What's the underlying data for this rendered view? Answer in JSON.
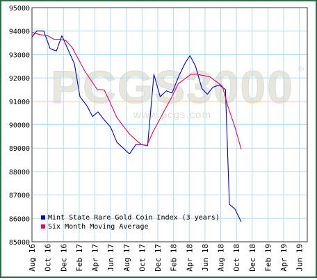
{
  "chart_data": {
    "type": "line",
    "title": "",
    "xlabel": "",
    "ylabel": "",
    "ylim": [
      85000,
      95000
    ],
    "grid": true,
    "legend_position": "bottom-left",
    "y_ticks": [
      85000,
      86000,
      87000,
      88000,
      89000,
      90000,
      91000,
      92000,
      93000,
      94000,
      95000
    ],
    "y_tick_labels": [
      "85000",
      "86000",
      "87000",
      "88000",
      "89000",
      "90000",
      "91000",
      "92000",
      "93000",
      "94000",
      "95000"
    ],
    "x_tick_labels": [
      "Aug 16",
      "Oct 16",
      "Dec 16",
      "Feb 17",
      "Apr 17",
      "Jun 17",
      "Aug 17",
      "Oct 17",
      "Dec 17",
      "Feb 18",
      "Apr 18",
      "Jun 18",
      "Aug 18",
      "Oct 18",
      "Dec 18",
      "Feb 19",
      "Apr 19",
      "Jun 19"
    ],
    "x_tick_month_index": [
      0,
      2,
      4,
      6,
      8,
      10,
      12,
      14,
      16,
      18,
      20,
      22,
      24,
      26,
      28,
      30,
      32,
      34
    ],
    "x_month_range": [
      0,
      35
    ],
    "series": [
      {
        "name": "Mint State Rare Gold Coin Index (3 years)",
        "color": "#0000cc",
        "points": [
          [
            0,
            93750
          ],
          [
            0.6,
            94000
          ],
          [
            1.5,
            94000
          ],
          [
            2.3,
            93250
          ],
          [
            3.1,
            93150
          ],
          [
            3.8,
            93800
          ],
          [
            4.6,
            93200
          ],
          [
            5.4,
            92600
          ],
          [
            6.1,
            91200
          ],
          [
            7.0,
            90800
          ],
          [
            7.7,
            90350
          ],
          [
            8.4,
            90550
          ],
          [
            9.2,
            90200
          ],
          [
            10.0,
            89900
          ],
          [
            10.8,
            89250
          ],
          [
            11.6,
            89000
          ],
          [
            12.4,
            88750
          ],
          [
            13.2,
            89150
          ],
          [
            14.1,
            89150
          ],
          [
            14.7,
            89100
          ],
          [
            15.5,
            92150
          ],
          [
            16.3,
            91200
          ],
          [
            17.1,
            91450
          ],
          [
            17.8,
            91350
          ],
          [
            18.7,
            92100
          ],
          [
            19.5,
            92650
          ],
          [
            20.1,
            92950
          ],
          [
            20.8,
            92500
          ],
          [
            21.6,
            91550
          ],
          [
            22.3,
            91300
          ],
          [
            23.0,
            91600
          ],
          [
            23.8,
            91700
          ],
          [
            24.6,
            91500
          ],
          [
            25.1,
            86600
          ],
          [
            25.8,
            86400
          ],
          [
            26.6,
            85850
          ]
        ]
      },
      {
        "name": "Six Month Moving Average",
        "color": "#ee0055",
        "points": [
          [
            0,
            93950
          ],
          [
            1.0,
            93850
          ],
          [
            2.0,
            93800
          ],
          [
            2.8,
            93650
          ],
          [
            3.5,
            93650
          ],
          [
            4.3,
            93600
          ],
          [
            5.1,
            93300
          ],
          [
            5.9,
            92800
          ],
          [
            6.7,
            92300
          ],
          [
            7.5,
            91900
          ],
          [
            8.3,
            91500
          ],
          [
            9.2,
            91480
          ],
          [
            10.0,
            90900
          ],
          [
            10.8,
            90300
          ],
          [
            11.6,
            89950
          ],
          [
            12.4,
            89600
          ],
          [
            13.2,
            89350
          ],
          [
            13.9,
            89150
          ],
          [
            14.6,
            89100
          ],
          [
            15.4,
            89700
          ],
          [
            16.2,
            90200
          ],
          [
            17.0,
            90700
          ],
          [
            17.8,
            91200
          ],
          [
            18.6,
            91750
          ],
          [
            19.4,
            91950
          ],
          [
            20.2,
            92150
          ],
          [
            21.0,
            92150
          ],
          [
            21.8,
            92100
          ],
          [
            22.6,
            92050
          ],
          [
            23.4,
            91850
          ],
          [
            24.2,
            91650
          ],
          [
            24.9,
            90800
          ],
          [
            25.8,
            89900
          ],
          [
            26.6,
            88950
          ]
        ]
      }
    ]
  }
}
